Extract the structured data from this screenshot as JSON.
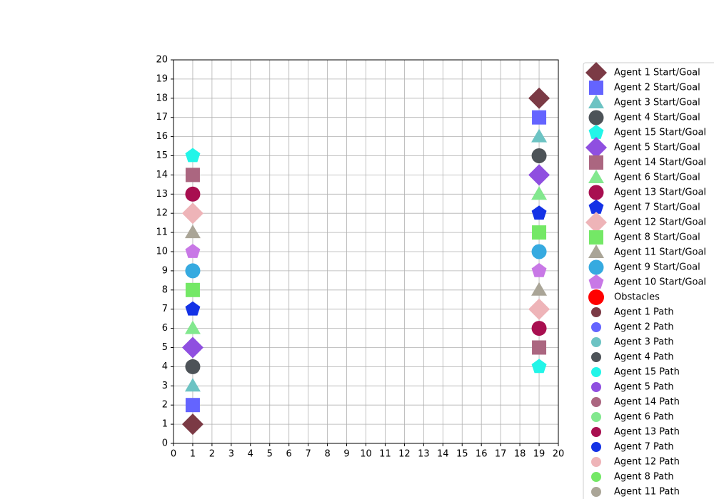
{
  "chart_data": {
    "type": "scatter",
    "xlim": [
      0,
      20
    ],
    "ylim": [
      0,
      20
    ],
    "xticks": [
      0,
      1,
      2,
      3,
      4,
      5,
      6,
      7,
      8,
      9,
      10,
      11,
      12,
      13,
      14,
      15,
      16,
      17,
      18,
      19,
      20
    ],
    "yticks": [
      0,
      1,
      2,
      3,
      4,
      5,
      6,
      7,
      8,
      9,
      10,
      11,
      12,
      13,
      14,
      15,
      16,
      17,
      18,
      19,
      20
    ],
    "grid": true,
    "legend_loc": "outside right",
    "series": [
      {
        "name": "Agent 1 Start/Goal",
        "color": "#7b3a45",
        "marker": "diamond",
        "x": [
          1,
          19
        ],
        "y": [
          1,
          18
        ]
      },
      {
        "name": "Agent 2 Start/Goal",
        "color": "#6464ff",
        "marker": "square",
        "x": [
          1,
          19
        ],
        "y": [
          2,
          17
        ]
      },
      {
        "name": "Agent 3 Start/Goal",
        "color": "#6cc3c3",
        "marker": "triangle",
        "x": [
          1,
          19
        ],
        "y": [
          3,
          16
        ]
      },
      {
        "name": "Agent 4 Start/Goal",
        "color": "#4d5358",
        "marker": "circle",
        "x": [
          1,
          19
        ],
        "y": [
          4,
          15
        ]
      },
      {
        "name": "Agent 15 Start/Goal",
        "color": "#22f5e8",
        "marker": "pentagon",
        "x": [
          1,
          19
        ],
        "y": [
          15,
          4
        ]
      },
      {
        "name": "Agent 5 Start/Goal",
        "color": "#8f4fe0",
        "marker": "diamond",
        "x": [
          1,
          19
        ],
        "y": [
          5,
          14
        ]
      },
      {
        "name": "Agent 14 Start/Goal",
        "color": "#ab6680",
        "marker": "square",
        "x": [
          1,
          19
        ],
        "y": [
          14,
          5
        ]
      },
      {
        "name": "Agent 6 Start/Goal",
        "color": "#82e88e",
        "marker": "triangle",
        "x": [
          1,
          19
        ],
        "y": [
          6,
          13
        ]
      },
      {
        "name": "Agent 13 Start/Goal",
        "color": "#a80f50",
        "marker": "circle",
        "x": [
          1,
          19
        ],
        "y": [
          13,
          6
        ]
      },
      {
        "name": "Agent 7 Start/Goal",
        "color": "#1432e6",
        "marker": "pentagon",
        "x": [
          1,
          19
        ],
        "y": [
          7,
          12
        ]
      },
      {
        "name": "Agent 12 Start/Goal",
        "color": "#eeb4b8",
        "marker": "diamond",
        "x": [
          1,
          19
        ],
        "y": [
          12,
          7
        ]
      },
      {
        "name": "Agent 8 Start/Goal",
        "color": "#74e866",
        "marker": "square",
        "x": [
          1,
          19
        ],
        "y": [
          8,
          11
        ]
      },
      {
        "name": "Agent 11 Start/Goal",
        "color": "#aaa597",
        "marker": "triangle",
        "x": [
          1,
          19
        ],
        "y": [
          11,
          8
        ]
      },
      {
        "name": "Agent 9 Start/Goal",
        "color": "#36aae0",
        "marker": "circle",
        "x": [
          1,
          19
        ],
        "y": [
          9,
          10
        ]
      },
      {
        "name": "Agent 10 Start/Goal",
        "color": "#c878e6",
        "marker": "pentagon",
        "x": [
          1,
          19
        ],
        "y": [
          10,
          9
        ]
      },
      {
        "name": "Obstacles",
        "color": "#ff0000",
        "marker": "bigcircle"
      },
      {
        "name": "Agent 1 Path",
        "color": "#7b3a45",
        "marker": "dot"
      },
      {
        "name": "Agent 2 Path",
        "color": "#6464ff",
        "marker": "dot"
      },
      {
        "name": "Agent 3 Path",
        "color": "#6cc3c3",
        "marker": "dot"
      },
      {
        "name": "Agent 4 Path",
        "color": "#4d5358",
        "marker": "dot"
      },
      {
        "name": "Agent 15 Path",
        "color": "#22f5e8",
        "marker": "dot"
      },
      {
        "name": "Agent 5 Path",
        "color": "#8f4fe0",
        "marker": "dot"
      },
      {
        "name": "Agent 14 Path",
        "color": "#ab6680",
        "marker": "dot"
      },
      {
        "name": "Agent 6 Path",
        "color": "#82e88e",
        "marker": "dot"
      },
      {
        "name": "Agent 13 Path",
        "color": "#a80f50",
        "marker": "dot"
      },
      {
        "name": "Agent 7 Path",
        "color": "#1432e6",
        "marker": "dot"
      },
      {
        "name": "Agent 12 Path",
        "color": "#eeb4b8",
        "marker": "dot"
      },
      {
        "name": "Agent 8 Path",
        "color": "#74e866",
        "marker": "dot"
      },
      {
        "name": "Agent 11 Path",
        "color": "#aaa597",
        "marker": "dot"
      }
    ]
  }
}
